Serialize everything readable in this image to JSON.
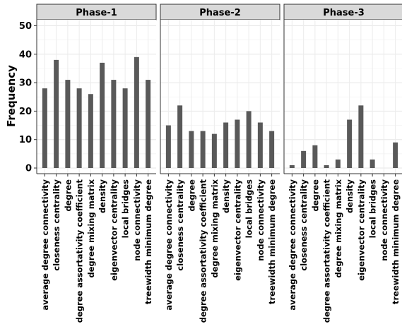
{
  "chart_data": {
    "type": "bar",
    "ylabel": "Frequency",
    "ylim": [
      -1,
      52
    ],
    "yticks": [
      0,
      10,
      20,
      30,
      40,
      50
    ],
    "grid": true,
    "bar_color": "#595959",
    "panel_strip_color": "#d9d9d9",
    "categories": [
      "average degree connectivity",
      "closeness centrality",
      "degree",
      "degree assortativity coefficient",
      "degree mixing matrix",
      "density",
      "eigenvector centrality",
      "local bridges",
      "node connectivity",
      "treewidth minimum degree"
    ],
    "series": [
      {
        "name": "Phase-1",
        "values": [
          28,
          38,
          31,
          28,
          26,
          37,
          31,
          28,
          39,
          31
        ]
      },
      {
        "name": "Phase-2",
        "values": [
          15,
          22,
          13,
          13,
          12,
          16,
          17,
          20,
          16,
          13
        ]
      },
      {
        "name": "Phase-3",
        "values": [
          1,
          6,
          8,
          1,
          3,
          17,
          22,
          3,
          0,
          9
        ]
      }
    ]
  }
}
